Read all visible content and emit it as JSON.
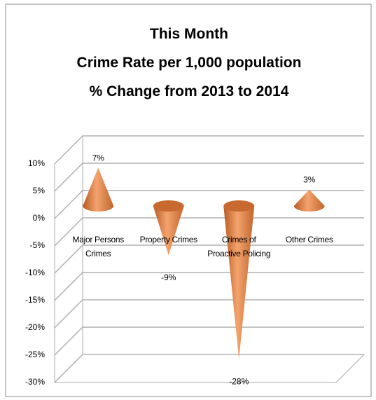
{
  "chart_data": {
    "type": "cone",
    "title": [
      "This Month",
      "Crime Rate per 1,000 population",
      "% Change  from 2013 to 2014"
    ],
    "categories": [
      "Major Persons Crimes",
      "Property Crimes",
      "Crimes of Proactive Policing",
      "Other Crimes"
    ],
    "values": [
      7,
      -9,
      -28,
      3
    ],
    "value_labels": [
      "7%",
      "-9%",
      "-28%",
      "3%"
    ],
    "color": "#e8844a",
    "ylim": [
      -30,
      10
    ],
    "yticks": [
      {
        "value": 10,
        "label": "10%"
      },
      {
        "value": 5,
        "label": "5%"
      },
      {
        "value": 0,
        "label": "0%"
      },
      {
        "value": -5,
        "label": "-5%"
      },
      {
        "value": -10,
        "label": "-10%"
      },
      {
        "value": -15,
        "label": "-15%"
      },
      {
        "value": -20,
        "label": "-20%"
      },
      {
        "value": -25,
        "label": "-25%"
      },
      {
        "value": -30,
        "label": "-30%"
      }
    ],
    "grid": true
  }
}
